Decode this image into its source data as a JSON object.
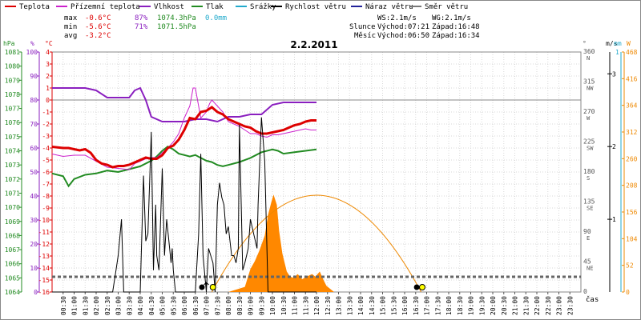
{
  "chart_data": {
    "type": "line",
    "title": "2.2.2011",
    "legend": [
      {
        "label": "Teplota",
        "color": "#dd0000"
      },
      {
        "label": "Přízemní teplota",
        "color": "#cc22cc"
      },
      {
        "label": "Vlhkost",
        "color": "#8a1fbf"
      },
      {
        "label": "Tlak",
        "color": "#228b22"
      },
      {
        "label": "Srážky",
        "color": "#22aacc"
      },
      {
        "label": "Rychlost větru",
        "color": "#000000"
      },
      {
        "label": "Náraz větru",
        "color": "#22229a"
      },
      {
        "label": "Směr větru",
        "color": "#777777"
      }
    ],
    "stats": {
      "max": {
        "label": "max",
        "temp": "-0.6°C",
        "hum": "87%",
        "press": "1074.3hPa",
        "rain": "0.0mm"
      },
      "min": {
        "label": "min",
        "temp": "-5.6°C",
        "hum": "71%",
        "press": "1071.5hPa"
      },
      "avg": {
        "label": "avg",
        "temp": "-3.2°C"
      }
    },
    "wind_info": {
      "ws": "WS:2.1m/s",
      "wg": "WG:2.1m/s"
    },
    "sun": {
      "label": "Slunce",
      "rise": "Východ:07:21",
      "set": "Západ:16:48"
    },
    "moon": {
      "label": "Měsíc",
      "rise": "Východ:06:50",
      "set": "Západ:16:34"
    },
    "axes": {
      "hpa_label": "hPa",
      "pct_label": "%",
      "degc_label": "°C",
      "hpa_ticks": [
        "1081",
        "1080",
        "1079",
        "1078",
        "1077",
        "1076",
        "1075",
        "1074",
        "1073",
        "1072",
        "1071",
        "1070",
        "1069",
        "1068",
        "1067",
        "1066",
        "1065",
        "1064"
      ],
      "pct_ticks": [
        "100",
        "90",
        "80",
        "70",
        "60",
        "50",
        "40",
        "30",
        "20",
        "10",
        "0"
      ],
      "temp_ticks": [
        "4",
        "3",
        "2",
        "1",
        "0",
        "-1",
        "-2",
        "-3",
        "-4",
        "-5",
        "-6",
        "-7",
        "-8",
        "-9",
        "-10",
        "-11",
        "-12",
        "-13",
        "-14",
        "-15",
        "-16"
      ],
      "dir_label": "°",
      "dir_ticks": [
        {
          "deg": "360",
          "name": "N"
        },
        {
          "deg": "315",
          "name": "NW"
        },
        {
          "deg": "270",
          "name": "W"
        },
        {
          "deg": "225",
          "name": "SW"
        },
        {
          "deg": "180",
          "name": "S"
        },
        {
          "deg": "135",
          "name": "SE"
        },
        {
          "deg": "90",
          "name": "E"
        },
        {
          "deg": "45",
          "name": "NE"
        },
        {
          "deg": "0",
          "name": ""
        }
      ],
      "ms_label": "m/s",
      "ms_ticks": [
        "3",
        "2",
        "1"
      ],
      "mm_label": "mm",
      "mm_ticks": [
        "1"
      ],
      "w_label": "W",
      "w_ticks": [
        "468",
        "416",
        "364",
        "312",
        "260",
        "208",
        "156",
        "104",
        "52",
        "0"
      ],
      "x_ticks": [
        "00:30",
        "01:00",
        "01:30",
        "02:00",
        "02:30",
        "03:00",
        "03:30",
        "04:00",
        "04:30",
        "05:00",
        "05:30",
        "06:00",
        "06:30",
        "07:00",
        "07:30",
        "08:00",
        "08:30",
        "09:00",
        "09:30",
        "10:00",
        "10:30",
        "11:00",
        "11:30",
        "12:00",
        "12:30",
        "13:00",
        "13:30",
        "14:00",
        "14:30",
        "15:00",
        "15:30",
        "16:00",
        "16:30",
        "17:00",
        "17:30",
        "18:00",
        "18:30",
        "19:00",
        "19:30",
        "20:00",
        "20:30",
        "21:00",
        "21:30",
        "22:00",
        "22:30",
        "23:00",
        "23:30"
      ],
      "x_label": "čas",
      "temp_range": [
        -16,
        4
      ],
      "humidity_range": [
        0,
        100
      ],
      "pressure_range": [
        1064,
        1081
      ],
      "wind_speed_range": [
        0,
        3.3
      ],
      "solar_range": [
        0,
        468
      ]
    },
    "series": {
      "temperature": [
        [
          0.0,
          -3.9
        ],
        [
          1.0,
          -4.0
        ],
        [
          1.5,
          -4.0
        ],
        [
          2.0,
          -4.1
        ],
        [
          2.5,
          -4.2
        ],
        [
          3.0,
          -4.1
        ],
        [
          3.5,
          -4.4
        ],
        [
          4.0,
          -5.0
        ],
        [
          4.5,
          -5.3
        ],
        [
          5.0,
          -5.4
        ],
        [
          5.5,
          -5.6
        ],
        [
          6.0,
          -5.5
        ],
        [
          6.5,
          -5.5
        ],
        [
          7.0,
          -5.4
        ],
        [
          7.5,
          -5.2
        ],
        [
          8.0,
          -5.0
        ],
        [
          8.5,
          -4.8
        ],
        [
          9.0,
          -4.9
        ],
        [
          9.5,
          -4.9
        ],
        [
          10.0,
          -4.6
        ],
        [
          10.5,
          -4.0
        ],
        [
          11.0,
          -3.8
        ],
        [
          11.5,
          -3.3
        ],
        [
          12.0,
          -2.5
        ],
        [
          12.5,
          -1.5
        ],
        [
          13.0,
          -1.6
        ],
        [
          13.5,
          -1.0
        ],
        [
          14.0,
          -0.9
        ],
        [
          14.5,
          -0.6
        ],
        [
          15.0,
          -1.0
        ],
        [
          15.5,
          -1.2
        ],
        [
          16.0,
          -1.6
        ],
        [
          16.5,
          -1.8
        ],
        [
          17.0,
          -2.0
        ],
        [
          17.5,
          -2.2
        ],
        [
          18.0,
          -2.3
        ],
        [
          18.5,
          -2.6
        ],
        [
          19.0,
          -2.8
        ],
        [
          19.5,
          -2.8
        ],
        [
          20.0,
          -2.7
        ],
        [
          20.5,
          -2.6
        ],
        [
          21.0,
          -2.5
        ],
        [
          21.5,
          -2.3
        ],
        [
          22.0,
          -2.1
        ],
        [
          22.5,
          -2.0
        ],
        [
          23.0,
          -1.8
        ],
        [
          23.5,
          -1.7
        ],
        [
          24.0,
          -1.7
        ]
      ],
      "ground_temperature": [
        [
          0.0,
          -4.5
        ],
        [
          1.0,
          -4.7
        ],
        [
          2.0,
          -4.6
        ],
        [
          3.0,
          -4.6
        ],
        [
          4.0,
          -5.1
        ],
        [
          5.0,
          -5.6
        ],
        [
          6.0,
          -5.7
        ],
        [
          7.0,
          -5.8
        ],
        [
          7.5,
          -5.3
        ],
        [
          8.0,
          -5.1
        ],
        [
          8.5,
          -4.9
        ],
        [
          9.0,
          -4.8
        ],
        [
          9.5,
          -4.8
        ],
        [
          10.0,
          -4.4
        ],
        [
          10.5,
          -4.0
        ],
        [
          11.0,
          -3.5
        ],
        [
          11.5,
          -2.8
        ],
        [
          12.0,
          -1.5
        ],
        [
          12.5,
          -0.5
        ],
        [
          12.8,
          1.0
        ],
        [
          13.0,
          1.0
        ],
        [
          13.2,
          0.0
        ],
        [
          13.5,
          -1.5
        ],
        [
          14.0,
          -1.0
        ],
        [
          14.3,
          -0.3
        ],
        [
          14.5,
          0.0
        ],
        [
          15.0,
          -0.5
        ],
        [
          15.5,
          -1.0
        ],
        [
          16.0,
          -1.8
        ],
        [
          16.5,
          -2.0
        ],
        [
          17.0,
          -2.2
        ],
        [
          17.5,
          -2.5
        ],
        [
          18.0,
          -2.8
        ],
        [
          18.5,
          -2.8
        ],
        [
          19.0,
          -3.0
        ],
        [
          19.5,
          -3.1
        ],
        [
          20.0,
          -2.9
        ],
        [
          20.5,
          -2.9
        ],
        [
          21.0,
          -2.8
        ],
        [
          22.0,
          -2.6
        ],
        [
          23.0,
          -2.4
        ],
        [
          23.5,
          -2.5
        ],
        [
          24.0,
          -2.5
        ]
      ],
      "humidity": [
        [
          0.0,
          85
        ],
        [
          3.0,
          85
        ],
        [
          4.0,
          84
        ],
        [
          5.0,
          81
        ],
        [
          6.0,
          81
        ],
        [
          7.0,
          81
        ],
        [
          7.5,
          84
        ],
        [
          8.0,
          85
        ],
        [
          8.5,
          80
        ],
        [
          9.0,
          73
        ],
        [
          10.0,
          71
        ],
        [
          11.0,
          71
        ],
        [
          12.0,
          71
        ],
        [
          13.0,
          72
        ],
        [
          14.0,
          72
        ],
        [
          15.0,
          71
        ],
        [
          16.0,
          73
        ],
        [
          17.0,
          73
        ],
        [
          18.0,
          74
        ],
        [
          19.0,
          74
        ],
        [
          20.0,
          78
        ],
        [
          21.0,
          79
        ],
        [
          22.0,
          79
        ],
        [
          23.0,
          79
        ],
        [
          24.0,
          79
        ]
      ],
      "pressure": [
        [
          0.0,
          1072.4
        ],
        [
          1.0,
          1072.2
        ],
        [
          1.5,
          1071.5
        ],
        [
          2.0,
          1072.0
        ],
        [
          3.0,
          1072.3
        ],
        [
          4.0,
          1072.4
        ],
        [
          5.0,
          1072.6
        ],
        [
          6.0,
          1072.5
        ],
        [
          7.0,
          1072.7
        ],
        [
          8.0,
          1072.9
        ],
        [
          9.0,
          1073.3
        ],
        [
          9.5,
          1073.6
        ],
        [
          10.0,
          1074.0
        ],
        [
          10.5,
          1074.3
        ],
        [
          11.0,
          1074.1
        ],
        [
          11.5,
          1073.8
        ],
        [
          12.0,
          1073.7
        ],
        [
          12.5,
          1073.6
        ],
        [
          13.0,
          1073.7
        ],
        [
          13.5,
          1073.5
        ],
        [
          14.0,
          1073.3
        ],
        [
          14.5,
          1073.2
        ],
        [
          15.0,
          1073.0
        ],
        [
          15.5,
          1072.9
        ],
        [
          16.0,
          1073.0
        ],
        [
          16.5,
          1073.1
        ],
        [
          17.0,
          1073.2
        ],
        [
          18.0,
          1073.5
        ],
        [
          19.0,
          1073.9
        ],
        [
          20.0,
          1074.1
        ],
        [
          20.5,
          1074.0
        ],
        [
          21.0,
          1073.8
        ],
        [
          22.0,
          1073.9
        ],
        [
          23.0,
          1074.0
        ],
        [
          24.0,
          1074.1
        ]
      ],
      "wind_speed": [
        [
          0.0,
          0
        ],
        [
          5.5,
          0
        ],
        [
          5.8,
          0.3
        ],
        [
          6.0,
          0.5
        ],
        [
          6.3,
          1.0
        ],
        [
          6.5,
          0
        ],
        [
          8.0,
          0
        ],
        [
          8.3,
          1.6
        ],
        [
          8.5,
          0.7
        ],
        [
          8.7,
          0.8
        ],
        [
          9.0,
          2.2
        ],
        [
          9.2,
          0.3
        ],
        [
          9.4,
          1.2
        ],
        [
          9.5,
          0.5
        ],
        [
          9.7,
          0.3
        ],
        [
          10.0,
          1.7
        ],
        [
          10.2,
          0.5
        ],
        [
          10.4,
          1.0
        ],
        [
          10.6,
          0.7
        ],
        [
          10.8,
          0.4
        ],
        [
          10.9,
          0.6
        ],
        [
          11.0,
          0.3
        ],
        [
          11.2,
          0
        ],
        [
          13.0,
          0
        ],
        [
          13.3,
          0.8
        ],
        [
          13.5,
          1.9
        ],
        [
          13.7,
          0.5
        ],
        [
          14.0,
          0
        ],
        [
          14.2,
          0.6
        ],
        [
          14.4,
          0.5
        ],
        [
          14.6,
          0.4
        ],
        [
          14.8,
          0
        ],
        [
          15.0,
          1.2
        ],
        [
          15.2,
          1.5
        ],
        [
          15.4,
          1.3
        ],
        [
          15.6,
          1.2
        ],
        [
          15.8,
          0.8
        ],
        [
          16.0,
          0.9
        ],
        [
          16.3,
          0.5
        ],
        [
          16.5,
          0.5
        ],
        [
          16.7,
          0.4
        ],
        [
          16.9,
          0.6
        ],
        [
          17.0,
          2.3
        ],
        [
          17.3,
          0.3
        ],
        [
          17.5,
          0.4
        ],
        [
          17.8,
          0.6
        ],
        [
          18.0,
          1.0
        ],
        [
          18.3,
          0.8
        ],
        [
          18.6,
          0.6
        ],
        [
          18.7,
          1.2
        ],
        [
          19.0,
          2.4
        ],
        [
          19.3,
          1.8
        ],
        [
          19.6,
          0
        ],
        [
          24.0,
          0
        ]
      ],
      "solar": [
        [
          16.0,
          0
        ],
        [
          17.5,
          10
        ],
        [
          18.0,
          45
        ],
        [
          18.4,
          60
        ],
        [
          18.8,
          80
        ],
        [
          19.3,
          110
        ],
        [
          19.6,
          150
        ],
        [
          19.9,
          175
        ],
        [
          20.1,
          190
        ],
        [
          20.4,
          170
        ],
        [
          20.6,
          120
        ],
        [
          20.9,
          75
        ],
        [
          21.3,
          40
        ],
        [
          21.6,
          30
        ],
        [
          21.9,
          28
        ],
        [
          22.3,
          35
        ],
        [
          22.7,
          25
        ],
        [
          23.1,
          30
        ],
        [
          23.6,
          35
        ],
        [
          23.9,
          30
        ],
        [
          24.3,
          40
        ],
        [
          24.6,
          25
        ],
        [
          24.9,
          12
        ],
        [
          25.3,
          5
        ],
        [
          25.6,
          0
        ]
      ],
      "sun_altitude_curve": "arc",
      "wind_direction_level_deg": 0
    }
  }
}
